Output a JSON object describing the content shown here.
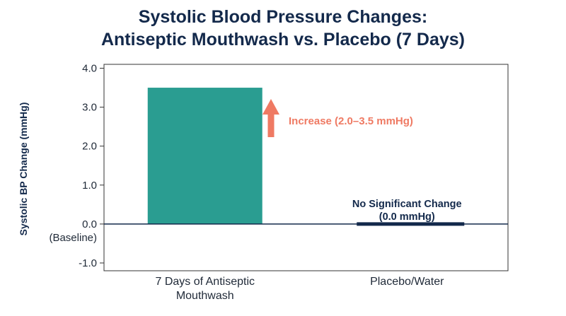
{
  "chart_data": {
    "type": "bar",
    "title_lines": [
      "Systolic Blood Pressure Changes:",
      "Antiseptic Mouthwash vs. Placebo (7 Days)"
    ],
    "ylabel": "Systolic BP Change (mmHg)",
    "xlabel": "",
    "ylim": [
      -1.2,
      4.1
    ],
    "yticks": [
      4.0,
      3.0,
      2.0,
      1.0,
      0.0,
      -1.0
    ],
    "ytick_labels": [
      "4.0",
      "3.0",
      "2.0",
      "1.0",
      "0.0",
      "-1.0"
    ],
    "baseline_label": "(Baseline)",
    "categories": [
      {
        "lines": [
          "7 Days of Antiseptic",
          "Mouthwash"
        ]
      },
      {
        "lines": [
          "Placebo/Water"
        ]
      }
    ],
    "values": [
      3.5,
      0.0
    ],
    "bar_colors": [
      "#2a9d91",
      "#13294b"
    ],
    "grid": false,
    "annotations": {
      "increase": {
        "text": "Increase (2.0–3.5 mmHg)",
        "color": "#ef7a63"
      },
      "no_change": {
        "lines": [
          "No Significant Change",
          "(0.0 mmHg)"
        ],
        "color": "#13294b"
      }
    }
  }
}
